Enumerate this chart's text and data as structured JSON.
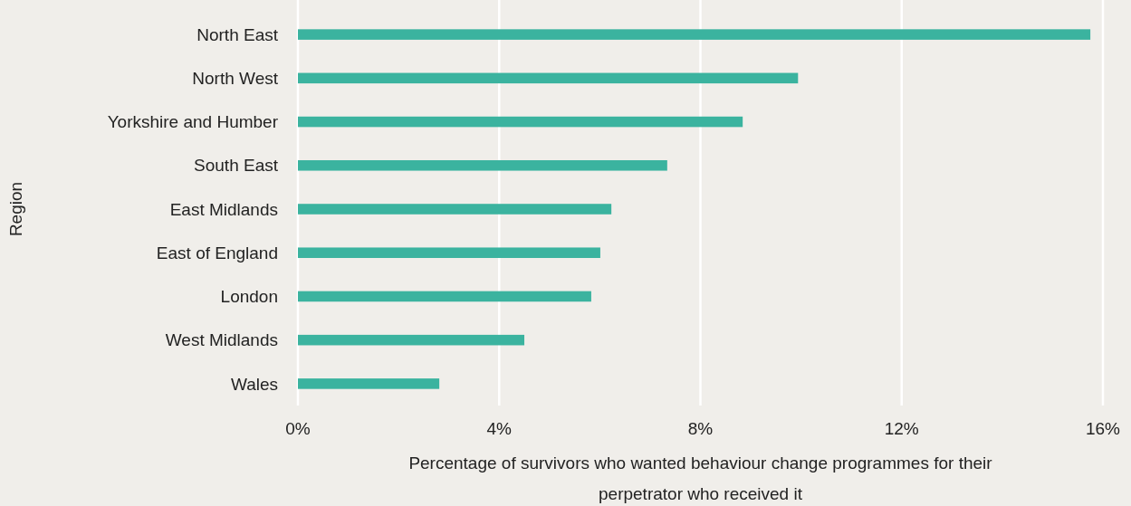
{
  "chart_data": {
    "type": "bar",
    "orientation": "horizontal",
    "categories": [
      "North East",
      "North West",
      "Yorkshire and Humber",
      "South East",
      "East Midlands",
      "East of England",
      "London",
      "West Midlands",
      "Wales"
    ],
    "values": [
      15.75,
      9.94,
      8.84,
      7.34,
      6.23,
      6.01,
      5.83,
      4.5,
      2.81
    ],
    "color": "#3bb39f",
    "xlim": [
      0,
      16
    ],
    "xticks": [
      {
        "value": 0,
        "label": "0%"
      },
      {
        "value": 4,
        "label": "4%"
      },
      {
        "value": 8,
        "label": "8%"
      },
      {
        "value": 12,
        "label": "12%"
      },
      {
        "value": 16,
        "label": "16%"
      }
    ],
    "grid": "x",
    "xlabel": "Percentage of survivors who wanted behaviour change programmes for their perpetrator who received it",
    "ylabel": "Region"
  }
}
